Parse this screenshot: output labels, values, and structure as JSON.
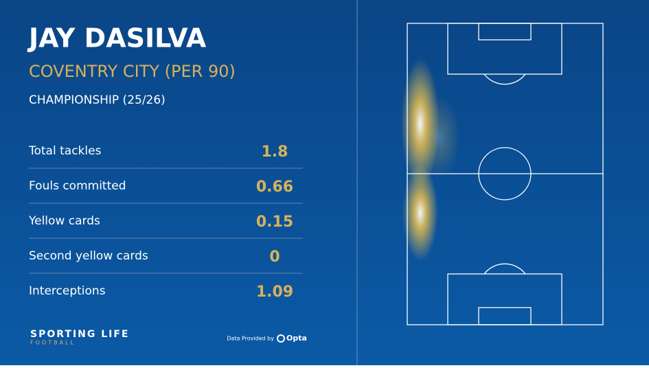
{
  "header": {
    "title": "JAY DASILVA",
    "subtitle": "COVENTRY CITY (PER 90)",
    "competition": "CHAMPIONSHIP (25/26)"
  },
  "stats": [
    {
      "label": "Total tackles",
      "value": 1.8
    },
    {
      "label": "Fouls committed",
      "value": 0.66
    },
    {
      "label": "Yellow cards",
      "value": 0.15
    },
    {
      "label": "Second yellow cards",
      "value": 0
    },
    {
      "label": "Interceptions",
      "value": 1.09
    }
  ],
  "footer": {
    "brand": "SPORTING LIFE",
    "brand_sub": "FOOTBALL",
    "credit": "Data Provided by",
    "provider": "Opta"
  }
}
